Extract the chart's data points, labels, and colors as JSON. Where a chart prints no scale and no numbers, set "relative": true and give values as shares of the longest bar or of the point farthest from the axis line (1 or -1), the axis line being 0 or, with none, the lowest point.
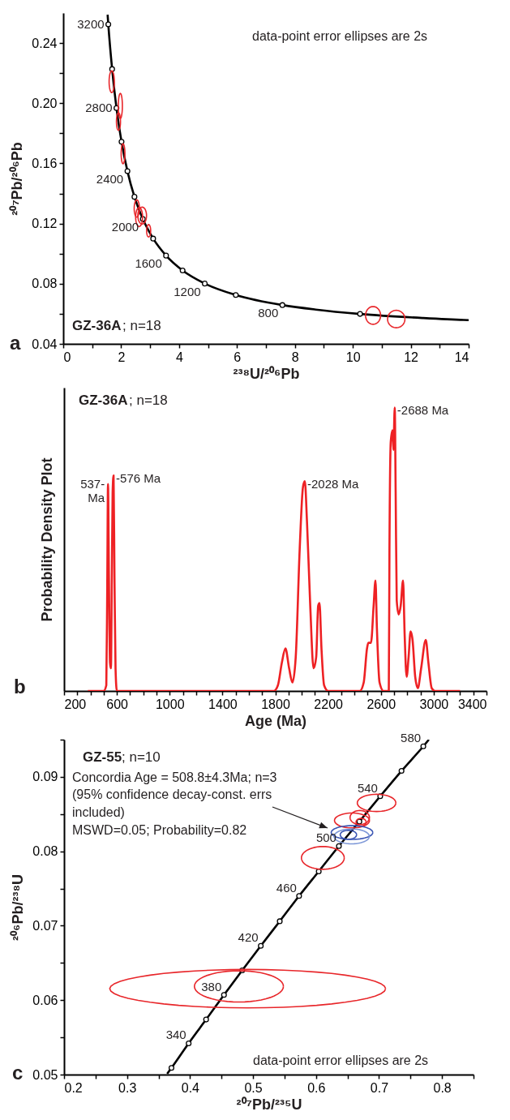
{
  "chart_data": [
    {
      "type": "line",
      "xlabel": "²³⁸U/²⁰⁶Pb",
      "ylabel": "²⁰⁷Pb/²⁰⁶Pb",
      "xlim": [
        0,
        14
      ],
      "ylim": [
        0.04,
        0.26
      ],
      "xticks": [
        0,
        {
          "value": 1,
          "label": null
        },
        2,
        {
          "value": 3,
          "label": null
        },
        4,
        {
          "value": 5,
          "label": null
        },
        6,
        {
          "value": 7,
          "label": null
        },
        8,
        {
          "value": 9,
          "label": null
        },
        10,
        {
          "value": 11,
          "label": null
        },
        12,
        {
          "value": 13,
          "label": null
        },
        14
      ],
      "yticks": [
        0.04,
        {
          "value": 0.06,
          "label": null
        },
        0.08,
        {
          "value": 0.1,
          "label": null
        },
        0.12,
        {
          "value": 0.14,
          "label": null
        },
        0.16,
        {
          "value": 0.18,
          "label": null
        },
        {
          "value": 0.2,
          "label": "0.20"
        },
        {
          "value": 0.22,
          "label": null
        },
        0.24
      ],
      "series": [
        {
          "color": "#000000",
          "x": [
            1.532,
            1.556,
            1.688,
            1.838,
            2.013,
            2.217,
            2.459,
            2.749,
            3.105,
            3.55,
            4.122,
            4.888,
            5.959,
            7.568,
            8.718,
            10.25,
            12.4,
            13.83,
            14
          ],
          "values": [
            0.2589,
            0.2524,
            0.2227,
            0.1968,
            0.1744,
            0.1548,
            0.1378,
            0.123,
            0.11,
            0.0987,
            0.0888,
            0.0801,
            0.0725,
            0.0658,
            0.0628,
            0.0599,
            0.0572,
            0.0559,
            0.0558
          ]
        },
        {
          "type": "scatter",
          "marker": "circle",
          "color": "#000000",
          "x": [
            1.556,
            1.688,
            1.838,
            2.013,
            2.217,
            2.459,
            2.749,
            3.105,
            3.55,
            4.122,
            4.888,
            5.959,
            7.568,
            10.25
          ],
          "values": [
            0.2524,
            0.2227,
            0.1968,
            0.1744,
            0.1548,
            0.1378,
            0.123,
            0.11,
            0.0987,
            0.0888,
            0.0801,
            0.0725,
            0.0658,
            0.0599
          ]
        }
      ],
      "annotations": [
        "a",
        "GZ-36A",
        "; n=18",
        "data-point error ellipses are 2s",
        {
          "text": "3200",
          "x": 1.556,
          "y": 0.2524
        },
        {
          "text": "2800",
          "x": 1.838,
          "y": 0.1968
        },
        {
          "text": "2400",
          "x": 2.217,
          "y": 0.1548
        },
        {
          "text": "2000",
          "x": 2.749,
          "y": 0.123
        },
        {
          "text": "1600",
          "x": 3.55,
          "y": 0.0987
        },
        {
          "text": "1200",
          "x": 4.888,
          "y": 0.0801
        },
        {
          "text": "800",
          "x": 7.568,
          "y": 0.0658
        }
      ]
    },
    {
      "type": "line",
      "relative": true,
      "tick_labels": "x",
      "xlabel": "Age (Ma)",
      "ylabel": "Probability Density Plot",
      "xlim": [
        200,
        3400
      ],
      "xticks": [
        200,
        {
          "value": 300,
          "label": null
        },
        {
          "value": 400,
          "label": null
        },
        {
          "value": 500,
          "label": null
        },
        600,
        {
          "value": 700,
          "label": null
        },
        {
          "value": 800,
          "label": null
        },
        {
          "value": 900,
          "label": null
        },
        1000,
        {
          "value": 1100,
          "label": null
        },
        {
          "value": 1200,
          "label": null
        },
        {
          "value": 1300,
          "label": null
        },
        1400,
        {
          "value": 1500,
          "label": null
        },
        {
          "value": 1600,
          "label": null
        },
        {
          "value": 1700,
          "label": null
        },
        1800,
        {
          "value": 1900,
          "label": null
        },
        {
          "value": 2000,
          "label": null
        },
        {
          "value": 2100,
          "label": null
        },
        2200,
        {
          "value": 2300,
          "label": null
        },
        {
          "value": 2400,
          "label": null
        },
        {
          "value": 2500,
          "label": null
        },
        2600,
        {
          "value": 2700,
          "label": null
        },
        {
          "value": 2800,
          "label": null
        },
        {
          "value": 2900,
          "label": null
        },
        3000,
        {
          "value": 3100,
          "label": null
        },
        {
          "value": 3200,
          "label": null
        },
        {
          "value": 3300,
          "label": null
        },
        3400
      ],
      "series": [
        {
          "color": "#ee2124",
          "x": [
            380,
            500,
            520,
            527,
            533,
            540,
            548,
            555,
            562,
            568,
            575,
            582,
            590,
            600,
            1790,
            1820,
            1850,
            1877,
            1905,
            1930,
            1955,
            1985,
            2010,
            2024,
            2040,
            2065,
            2090,
            2110,
            2125,
            2135,
            2150,
            2170,
            2200,
            2440,
            2470,
            2495,
            2505,
            2525,
            2545,
            2559,
            2570,
            2590,
            2620,
            2660,
            2665,
            2675,
            2688,
            2695,
            2705,
            2712,
            2720,
            2735,
            2750,
            2768,
            2780,
            2795,
            2810,
            2825,
            2840,
            2860,
            2880,
            2905,
            2940,
            2960,
            2985,
            3010,
            3200
          ],
          "values": [
            0,
            0,
            0.02,
            0.35,
            0.73,
            0.4,
            0.1,
            0.08,
            0.4,
            0.7,
            0.76,
            0.4,
            0.08,
            0,
            0,
            0.02,
            0.1,
            0.15,
            0.08,
            0.03,
            0.12,
            0.5,
            0.72,
            0.74,
            0.6,
            0.3,
            0.08,
            0.12,
            0.3,
            0.31,
            0.15,
            0.02,
            0,
            0,
            0.03,
            0.15,
            0.17,
            0.17,
            0.3,
            0.39,
            0.22,
            0.03,
            0,
            0,
            0.5,
            0.88,
            0.92,
            0.85,
            1,
            0.7,
            0.32,
            0.27,
            0.3,
            0.39,
            0.2,
            0.05,
            0.12,
            0.21,
            0.18,
            0.05,
            0.01,
            0.08,
            0.18,
            0.1,
            0.01,
            0,
            0
          ]
        }
      ],
      "annotations": [
        "b",
        "GZ-36A",
        "; n=18",
        {
          "text": "537-\nMa",
          "x": 533,
          "y": 0.73
        },
        {
          "text": "-576 Ma",
          "x": 575,
          "y": 0.76
        },
        {
          "text": "-2028 Ma",
          "x": 2024,
          "y": 0.74
        },
        {
          "text": "-2688 Ma",
          "x": 2705,
          "y": 1
        }
      ]
    },
    {
      "type": "line",
      "xlabel": "²⁰⁷Pb/²³⁵U",
      "ylabel": "²⁰⁶Pb/²³⁸U",
      "xlim": [
        0.2,
        0.85
      ],
      "ylim": [
        0.05,
        0.095
      ],
      "xticks": [
        0.2,
        {
          "value": 0.25,
          "label": null
        },
        0.3,
        {
          "value": 0.35,
          "label": null
        },
        0.4,
        {
          "value": 0.45,
          "label": null
        },
        0.5,
        {
          "value": 0.55,
          "label": null
        },
        0.6,
        {
          "value": 0.65,
          "label": null
        },
        0.7,
        {
          "value": 0.75,
          "label": null
        },
        0.8,
        {
          "value": 0.85,
          "label": null
        }
      ],
      "yticks": [
        0.05,
        {
          "value": 0.055,
          "label": null
        },
        0.06,
        {
          "value": 0.065,
          "label": null
        },
        0.07,
        {
          "value": 0.075,
          "label": null
        },
        0.08,
        {
          "value": 0.085,
          "label": null
        },
        0.09,
        {
          "value": 0.095,
          "label": null
        }
      ],
      "series": [
        {
          "color": "#000000",
          "x": [
            0.3637,
            0.3705,
            0.3978,
            0.4255,
            0.4539,
            0.4828,
            0.5123,
            0.5424,
            0.5731,
            0.6043,
            0.6363,
            0.6688,
            0.7019,
            0.7357,
            0.7703,
            0.7791
          ],
          "values": [
            0.0501,
            0.0509,
            0.0542,
            0.0574,
            0.0607,
            0.064,
            0.0673,
            0.0706,
            0.074,
            0.0773,
            0.0807,
            0.084,
            0.0874,
            0.0908,
            0.0941,
            0.095
          ]
        },
        {
          "type": "scatter",
          "marker": "circle",
          "color": "#000000",
          "x": [
            0.3705,
            0.3978,
            0.4255,
            0.4539,
            0.4828,
            0.5123,
            0.5424,
            0.5731,
            0.6043,
            0.6363,
            0.6688,
            0.7019,
            0.7357,
            0.7703
          ],
          "values": [
            0.0509,
            0.0542,
            0.0574,
            0.0607,
            0.064,
            0.0673,
            0.0706,
            0.074,
            0.0773,
            0.0807,
            0.084,
            0.0874,
            0.0908,
            0.0941
          ]
        }
      ],
      "annotations": [
        "c",
        "GZ-55",
        "; n=10",
        "Concordia Age = 508.8±4.3Ma; n=3",
        "(95% confidence decay-const. errs",
        "included)",
        "MSWD=0.05; Probability=0.82",
        "data-point error ellipses are 2s",
        {
          "text": "340",
          "x": 0.3978,
          "y": 0.0542
        },
        {
          "text": "380",
          "x": 0.4539,
          "y": 0.0607
        },
        {
          "text": "420",
          "x": 0.5123,
          "y": 0.0673
        },
        {
          "text": "460",
          "x": 0.5731,
          "y": 0.074
        },
        {
          "text": "500",
          "x": 0.6363,
          "y": 0.0807
        },
        {
          "text": "540",
          "x": 0.7019,
          "y": 0.0874
        },
        {
          "text": "580",
          "x": 0.7703,
          "y": 0.0941
        }
      ]
    }
  ]
}
